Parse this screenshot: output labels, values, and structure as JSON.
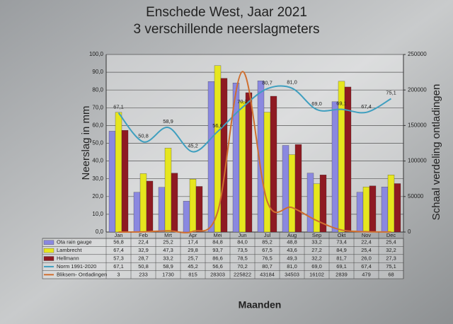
{
  "chart_data": {
    "type": "bar",
    "title": "Enschede West, Jaar 2021",
    "subtitle": "3 verschillende neerslagmeters",
    "y_label": "Neerslag in mm",
    "y2_label": "Schaal  verdeling ontladingen",
    "x_label": "Maanden",
    "categories": [
      "Jan",
      "Feb",
      "Mrt",
      "Apr",
      "Mei",
      "Jun",
      "Jul",
      "Aug",
      "Sep",
      "Okt",
      "Nov",
      "Dec"
    ],
    "series": [
      {
        "name": "Ota rain gauge",
        "type": "bar",
        "color": "#8a88e0",
        "values": [
          56.8,
          22.4,
          25.2,
          17.4,
          84.8,
          84.0,
          85.2,
          48.8,
          33.2,
          73.4,
          22.4,
          25.4
        ],
        "value_labels": [
          "56,8",
          "22,4",
          "25,2",
          "17,4",
          "84,8",
          "84,0",
          "85,2",
          "48,8",
          "33,2",
          "73,4",
          "22,4",
          "25,4"
        ]
      },
      {
        "name": "Lambrecht",
        "type": "bar",
        "color": "#e6e61e",
        "values": [
          67.4,
          32.9,
          47.3,
          29.8,
          93.7,
          73.5,
          67.5,
          43.6,
          27.2,
          84.9,
          25.4,
          32.2
        ],
        "value_labels": [
          "67,4",
          "32,9",
          "47,3",
          "29,8",
          "93,7",
          "73,5",
          "67,5",
          "43,6",
          "27,2",
          "84,9",
          "25,4",
          "32,2"
        ]
      },
      {
        "name": "Hellmann",
        "type": "bar",
        "color": "#8e1a22",
        "values": [
          57.3,
          28.7,
          33.2,
          25.7,
          86.6,
          78.5,
          76.5,
          49.3,
          32.2,
          81.7,
          26.0,
          27.3
        ],
        "value_labels": [
          "57,3",
          "28,7",
          "33,2",
          "25,7",
          "86,6",
          "78,5",
          "76,5",
          "49,3",
          "32,2",
          "81,7",
          "26,0",
          "27,3"
        ]
      },
      {
        "name": "Norm 1991-2020",
        "type": "line",
        "color": "#3f9fbf",
        "values": [
          67.1,
          50.8,
          58.9,
          45.2,
          56.6,
          70.2,
          80.7,
          81.0,
          69.0,
          69.1,
          67.4,
          75.1
        ],
        "value_labels": [
          "67,1",
          "50,8",
          "58,9",
          "45,2",
          "56,6",
          "70,2",
          "80,7",
          "81,0",
          "69,0",
          "69,1",
          "67,4",
          "75,1"
        ]
      },
      {
        "name": "Bliksem- Ontladingen",
        "type": "line",
        "axis": "y2",
        "color": "#cf6f30",
        "values": [
          3,
          233,
          1730,
          815,
          28303,
          225822,
          43184,
          34503,
          16102,
          2839,
          479,
          68
        ]
      }
    ],
    "ylim": [
      0,
      100
    ],
    "yticks": [
      {
        "value": 0,
        "label": "0,0"
      },
      {
        "value": 10,
        "label": "10,0"
      },
      {
        "value": 20,
        "label": "20,0"
      },
      {
        "value": 30,
        "label": "30,0"
      },
      {
        "value": 40,
        "label": "40,0"
      },
      {
        "value": 50,
        "label": "50,0"
      },
      {
        "value": 60,
        "label": "60,0"
      },
      {
        "value": 70,
        "label": "70,0"
      },
      {
        "value": 80,
        "label": "80,0"
      },
      {
        "value": 90,
        "label": "90,0"
      },
      {
        "value": 100,
        "label": "100,0"
      }
    ],
    "y2lim": [
      0,
      250000
    ],
    "y2ticks": [
      0,
      50000,
      100000,
      150000,
      200000,
      250000
    ],
    "grid": true
  }
}
